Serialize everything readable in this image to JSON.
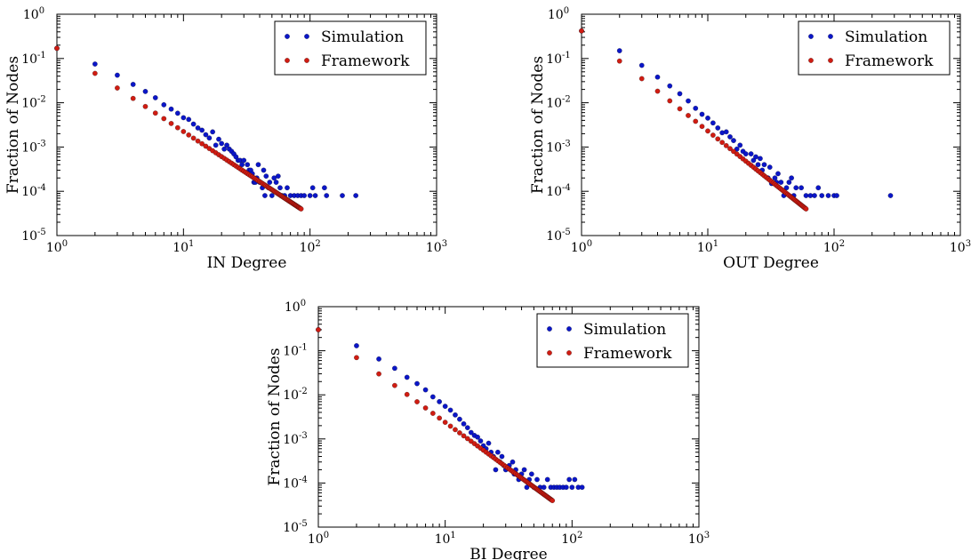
{
  "chart_data": [
    {
      "type": "scatter",
      "xlabel": "IN Degree",
      "ylabel": "Fraction of Nodes",
      "xscale": "log",
      "yscale": "log",
      "xlim": [
        1,
        1000
      ],
      "ylim": [
        1e-05,
        1
      ],
      "legend": "top-right",
      "grid": false,
      "series": [
        {
          "name": "Simulation",
          "color": "#0b16c8",
          "points": [
            [
              1,
              0.17
            ],
            [
              2,
              0.075
            ],
            [
              3,
              0.042
            ],
            [
              4,
              0.026
            ],
            [
              5,
              0.018
            ],
            [
              6,
              0.013
            ],
            [
              7,
              0.009
            ],
            [
              8,
              0.0072
            ],
            [
              9,
              0.0058
            ],
            [
              10,
              0.0046
            ],
            [
              11,
              0.0042
            ],
            [
              12,
              0.0033
            ],
            [
              13,
              0.0027
            ],
            [
              14,
              0.0024
            ],
            [
              15,
              0.0019
            ],
            [
              16,
              0.0016
            ],
            [
              17,
              0.0022
            ],
            [
              18,
              0.0011
            ],
            [
              19,
              0.0015
            ],
            [
              20,
              0.0012
            ],
            [
              21,
              0.0009
            ],
            [
              22,
              0.0011
            ],
            [
              23,
              0.0009
            ],
            [
              24,
              0.0008
            ],
            [
              25,
              0.0007
            ],
            [
              26,
              0.0006
            ],
            [
              27,
              0.0005
            ],
            [
              28,
              0.0005
            ],
            [
              29,
              0.0004
            ],
            [
              30,
              0.0005
            ],
            [
              32,
              0.0004
            ],
            [
              33,
              0.0003
            ],
            [
              34,
              0.0003
            ],
            [
              35,
              0.00025
            ],
            [
              36,
              0.00016
            ],
            [
              37,
              0.00016
            ],
            [
              38,
              0.0002
            ],
            [
              39,
              0.0004
            ],
            [
              40,
              0.00016
            ],
            [
              42,
              0.00012
            ],
            [
              43,
              0.0003
            ],
            [
              44,
              8e-05
            ],
            [
              45,
              0.00022
            ],
            [
              47,
              0.00012
            ],
            [
              48,
              0.00016
            ],
            [
              50,
              8e-05
            ],
            [
              52,
              0.0002
            ],
            [
              54,
              0.00016
            ],
            [
              56,
              0.00022
            ],
            [
              58,
              0.00012
            ],
            [
              60,
              8e-05
            ],
            [
              63,
              8e-05
            ],
            [
              66,
              0.00012
            ],
            [
              70,
              8e-05
            ],
            [
              75,
              8e-05
            ],
            [
              80,
              8e-05
            ],
            [
              85,
              8e-05
            ],
            [
              90,
              8e-05
            ],
            [
              100,
              8e-05
            ],
            [
              105,
              0.00012
            ],
            [
              110,
              8e-05
            ],
            [
              130,
              0.00012
            ],
            [
              135,
              8e-05
            ],
            [
              180,
              8e-05
            ],
            [
              230,
              8e-05
            ]
          ]
        },
        {
          "name": "Framework",
          "color": "#d01c12",
          "curve": {
            "x_start": 1,
            "x_end": 85,
            "y_start": 0.17,
            "y_end": 4e-05
          }
        }
      ]
    },
    {
      "type": "scatter",
      "xlabel": "OUT Degree",
      "ylabel": "Fraction of Nodes",
      "xscale": "log",
      "yscale": "log",
      "xlim": [
        1,
        1000
      ],
      "ylim": [
        1e-05,
        1
      ],
      "legend": "top-right",
      "grid": false,
      "series": [
        {
          "name": "Simulation",
          "color": "#0b16c8",
          "points": [
            [
              1,
              0.42
            ],
            [
              2,
              0.15
            ],
            [
              3,
              0.07
            ],
            [
              4,
              0.038
            ],
            [
              5,
              0.024
            ],
            [
              6,
              0.016
            ],
            [
              7,
              0.011
            ],
            [
              8,
              0.0075
            ],
            [
              9,
              0.0055
            ],
            [
              10,
              0.0045
            ],
            [
              11,
              0.0035
            ],
            [
              12,
              0.0027
            ],
            [
              13,
              0.0021
            ],
            [
              14,
              0.0022
            ],
            [
              15,
              0.0017
            ],
            [
              16,
              0.0014
            ],
            [
              17,
              0.0009
            ],
            [
              18,
              0.0011
            ],
            [
              19,
              0.0008
            ],
            [
              20,
              0.0007
            ],
            [
              22,
              0.0007
            ],
            [
              23,
              0.0005
            ],
            [
              24,
              0.0006
            ],
            [
              25,
              0.0004
            ],
            [
              26,
              0.00055
            ],
            [
              27,
              0.0003
            ],
            [
              28,
              0.0004
            ],
            [
              30,
              0.0002
            ],
            [
              31,
              0.00035
            ],
            [
              32,
              0.00015
            ],
            [
              34,
              0.0002
            ],
            [
              35,
              0.00016
            ],
            [
              36,
              0.00025
            ],
            [
              38,
              0.00016
            ],
            [
              40,
              8e-05
            ],
            [
              42,
              0.00012
            ],
            [
              44,
              0.00016
            ],
            [
              46,
              0.0002
            ],
            [
              48,
              8e-05
            ],
            [
              50,
              0.00012
            ],
            [
              55,
              0.00012
            ],
            [
              60,
              8e-05
            ],
            [
              65,
              8e-05
            ],
            [
              70,
              8e-05
            ],
            [
              75,
              0.00012
            ],
            [
              80,
              8e-05
            ],
            [
              90,
              8e-05
            ],
            [
              100,
              8e-05
            ],
            [
              105,
              8e-05
            ],
            [
              280,
              8e-05
            ]
          ]
        },
        {
          "name": "Framework",
          "color": "#d01c12",
          "curve": {
            "x_start": 1,
            "x_end": 60,
            "y_start": 0.42,
            "y_end": 4e-05
          }
        }
      ]
    },
    {
      "type": "scatter",
      "xlabel": "BI Degree",
      "ylabel": "Fraction of Nodes",
      "xscale": "log",
      "yscale": "log",
      "xlim": [
        1,
        1000
      ],
      "ylim": [
        1e-05,
        1
      ],
      "legend": "top-right",
      "grid": false,
      "series": [
        {
          "name": "Simulation",
          "color": "#0b16c8",
          "points": [
            [
              1,
              0.3
            ],
            [
              2,
              0.13
            ],
            [
              3,
              0.065
            ],
            [
              4,
              0.04
            ],
            [
              5,
              0.025
            ],
            [
              6,
              0.018
            ],
            [
              7,
              0.013
            ],
            [
              8,
              0.009
            ],
            [
              9,
              0.007
            ],
            [
              10,
              0.0055
            ],
            [
              11,
              0.0045
            ],
            [
              12,
              0.0035
            ],
            [
              13,
              0.0028
            ],
            [
              14,
              0.0022
            ],
            [
              15,
              0.0018
            ],
            [
              16,
              0.0014
            ],
            [
              17,
              0.0012
            ],
            [
              18,
              0.0011
            ],
            [
              19,
              0.0009
            ],
            [
              20,
              0.0007
            ],
            [
              21,
              0.0006
            ],
            [
              22,
              0.0008
            ],
            [
              23,
              0.0005
            ],
            [
              24,
              0.0004
            ],
            [
              25,
              0.0002
            ],
            [
              26,
              0.0005
            ],
            [
              27,
              0.0003
            ],
            [
              28,
              0.0004
            ],
            [
              29,
              0.00025
            ],
            [
              30,
              0.0002
            ],
            [
              32,
              0.00025
            ],
            [
              34,
              0.0003
            ],
            [
              35,
              0.00016
            ],
            [
              36,
              0.0002
            ],
            [
              38,
              0.00012
            ],
            [
              40,
              0.00016
            ],
            [
              42,
              0.0002
            ],
            [
              44,
              8e-05
            ],
            [
              46,
              0.00012
            ],
            [
              48,
              0.00016
            ],
            [
              50,
              8e-05
            ],
            [
              53,
              0.00012
            ],
            [
              56,
              8e-05
            ],
            [
              60,
              8e-05
            ],
            [
              64,
              0.00012
            ],
            [
              68,
              8e-05
            ],
            [
              72,
              8e-05
            ],
            [
              76,
              8e-05
            ],
            [
              80,
              8e-05
            ],
            [
              85,
              8e-05
            ],
            [
              90,
              8e-05
            ],
            [
              95,
              0.00012
            ],
            [
              100,
              8e-05
            ],
            [
              105,
              0.00012
            ],
            [
              112,
              8e-05
            ],
            [
              120,
              8e-05
            ]
          ]
        },
        {
          "name": "Framework",
          "color": "#d01c12",
          "curve": {
            "x_start": 1,
            "x_end": 70,
            "y_start": 0.3,
            "y_end": 4e-05
          }
        }
      ]
    }
  ]
}
